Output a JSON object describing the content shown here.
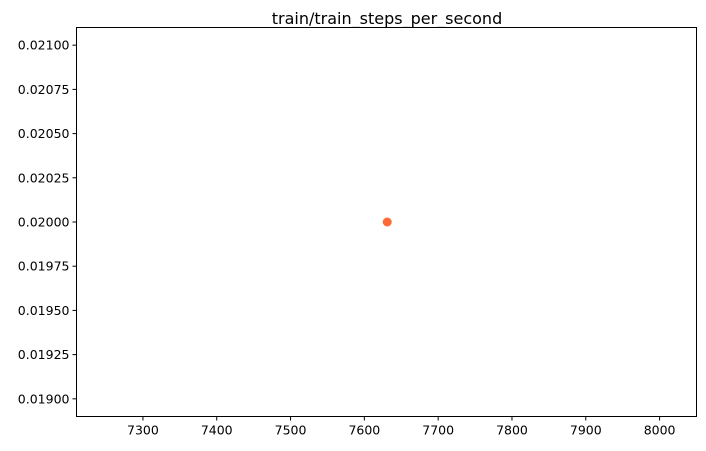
{
  "chart_data": {
    "type": "scatter",
    "title": "train/train_steps_per_second",
    "xlabel": "",
    "ylabel": "",
    "xlim": [
      7210,
      8050
    ],
    "ylim": [
      0.0189,
      0.0211
    ],
    "xticks": [
      7300,
      7400,
      7500,
      7600,
      7700,
      7800,
      7900,
      8000
    ],
    "xtick_labels": [
      "7300",
      "7400",
      "7500",
      "7600",
      "7700",
      "7800",
      "7900",
      "8000"
    ],
    "yticks": [
      0.019,
      0.01925,
      0.0195,
      0.01975,
      0.02,
      0.02025,
      0.0205,
      0.02075,
      0.021
    ],
    "ytick_labels": [
      "0.01900",
      "0.01925",
      "0.01950",
      "0.01975",
      "0.02000",
      "0.02025",
      "0.02050",
      "0.02075",
      "0.02100"
    ],
    "grid": false,
    "series": [
      {
        "color": "#ff6b35",
        "points": [
          {
            "x": 7631,
            "y": 0.02
          }
        ]
      }
    ]
  }
}
